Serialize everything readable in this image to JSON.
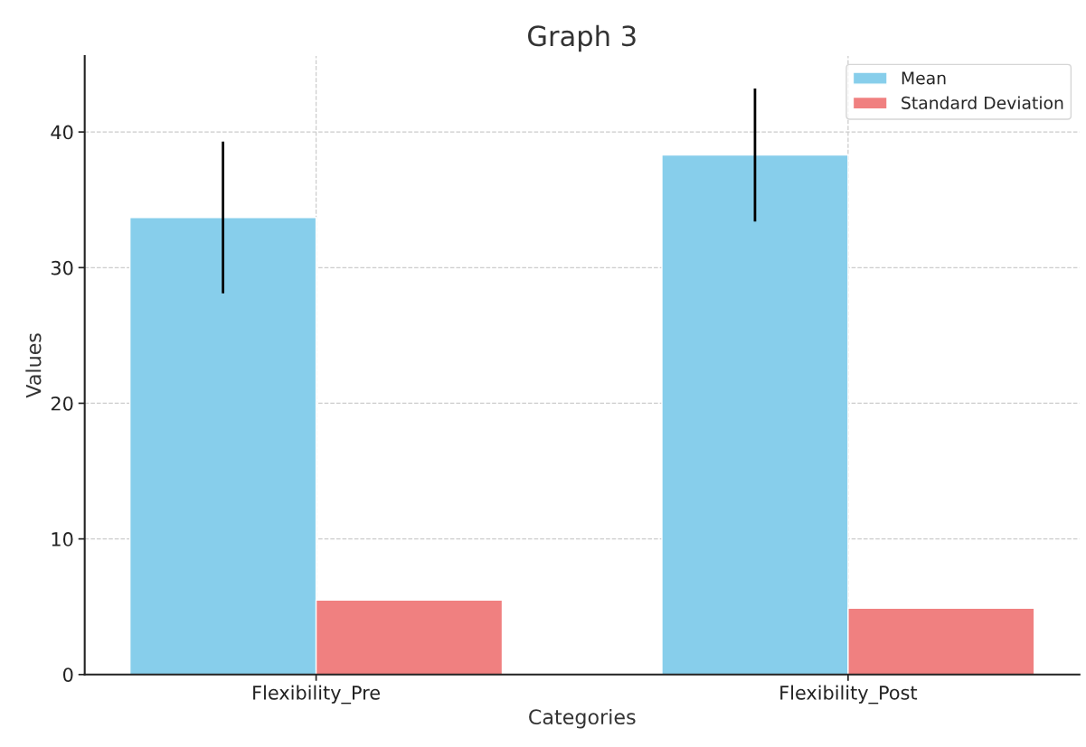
{
  "chart_data": {
    "type": "bar",
    "title": "Graph 3",
    "xlabel": "Categories",
    "ylabel": "Values",
    "categories": [
      "Flexibility_Pre",
      "Flexibility_Post"
    ],
    "series": [
      {
        "name": "Mean",
        "color": "#87ceeb",
        "values": [
          33.7,
          38.3
        ],
        "errors": [
          5.6,
          4.9
        ]
      },
      {
        "name": "Standard Deviation",
        "color": "#f08080",
        "values": [
          5.5,
          4.9
        ]
      }
    ],
    "ylim": [
      0,
      45.6
    ],
    "yticks": [
      0,
      10,
      20,
      30,
      40
    ],
    "grid": true,
    "legend": "top right"
  }
}
